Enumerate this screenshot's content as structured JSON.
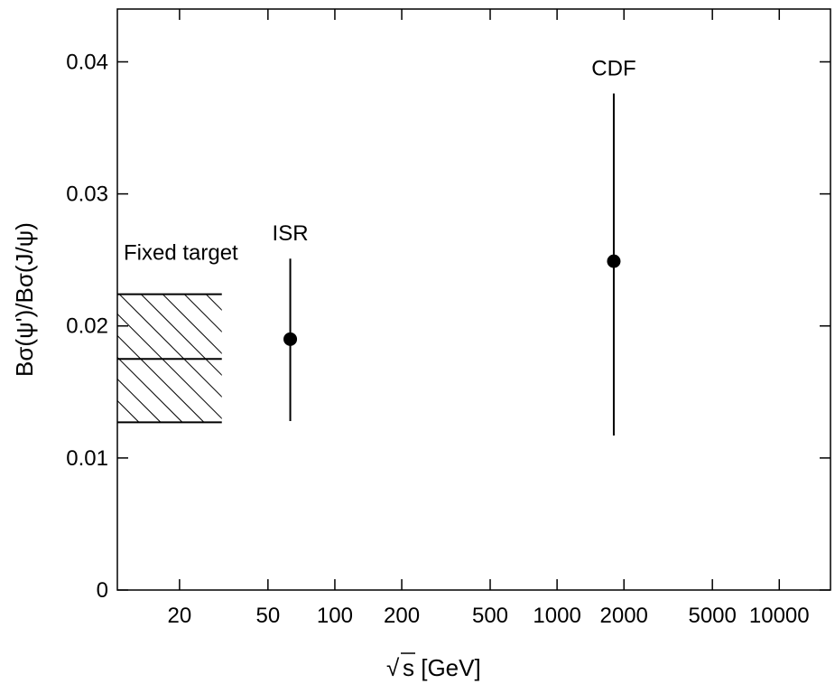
{
  "chart_data": {
    "type": "scatter",
    "title": "",
    "xlabel": "s [GeV]",
    "xlabel_radical": "√",
    "ylabel": "Bσ(ψ')/Bσ(J/ψ)",
    "x_scale": "log",
    "xlim": [
      10.5,
      17000
    ],
    "ylim": [
      0,
      0.044
    ],
    "grid": false,
    "x_ticks": [
      20,
      50,
      100,
      200,
      500,
      1000,
      2000,
      5000,
      10000
    ],
    "x_tick_labels": [
      "20",
      "50",
      "100",
      "200",
      "500",
      "1000",
      "2000",
      "5000",
      "10000"
    ],
    "y_ticks": [
      0,
      0.01,
      0.02,
      0.03,
      0.04
    ],
    "y_tick_labels": [
      "0",
      "0.01",
      "0.02",
      "0.03",
      "0.04"
    ],
    "band": {
      "label": "Fixed target",
      "x_range": [
        10.5,
        31
      ],
      "central": 0.0175,
      "low": 0.0127,
      "high": 0.0224
    },
    "points": [
      {
        "label": "ISR",
        "x": 63,
        "y": 0.019,
        "y_low": 0.0128,
        "y_high": 0.0251
      },
      {
        "label": "CDF",
        "x": 1800,
        "y": 0.0249,
        "y_low": 0.0117,
        "y_high": 0.0376
      }
    ]
  }
}
